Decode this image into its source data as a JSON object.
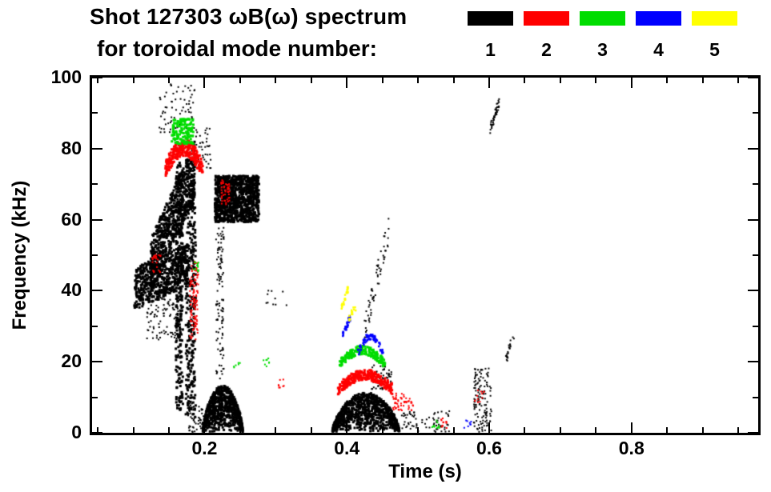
{
  "chart_data": {
    "type": "scatter",
    "title": "Shot 127303 ωB(ω) spectrum",
    "subtitle": "for toroidal mode number:",
    "xlabel": "Time (s)",
    "ylabel": "Frequency (kHz)",
    "xlim": [
      0.042,
      0.978
    ],
    "ylim": [
      0,
      100
    ],
    "xticks": [
      0.2,
      0.4,
      0.6,
      0.8
    ],
    "xtick_labels": [
      "0.2",
      "0.4",
      "0.6",
      "0.8"
    ],
    "yticks": [
      0,
      20,
      40,
      60,
      80,
      100
    ],
    "ytick_labels": [
      "0",
      "20",
      "40",
      "60",
      "80",
      "100"
    ],
    "x_minor_step": 0.05,
    "y_minor_step": 10,
    "legend": [
      {
        "label": "1",
        "color": "#000000"
      },
      {
        "label": "2",
        "color": "#ff0000"
      },
      {
        "label": "3",
        "color": "#00dd00"
      },
      {
        "label": "4",
        "color": "#0000ff"
      },
      {
        "label": "5",
        "color": "#ffff00"
      }
    ],
    "series": [
      {
        "mode": "1",
        "color": "#000000",
        "clusters": [
          [
            "diag",
            0.1,
            0.175,
            40,
            47,
            550,
            3,
            6
          ],
          [
            "diag",
            0.122,
            0.185,
            46,
            74,
            700,
            3,
            8
          ],
          [
            "rect",
            0.158,
            0.168,
            6,
            76,
            300,
            3,
            0
          ],
          [
            "rect",
            0.172,
            0.186,
            4,
            70,
            300,
            3,
            0
          ],
          [
            "rect",
            0.213,
            0.275,
            59,
            72,
            1100,
            3,
            0
          ],
          [
            "rect",
            0.215,
            0.226,
            15,
            58,
            110,
            2,
            0
          ],
          [
            "arch",
            0.196,
            0.252,
            0,
            13,
            750,
            3,
            0
          ],
          [
            "rect",
            0.135,
            0.185,
            84,
            98,
            70,
            2,
            0
          ],
          [
            "rect",
            0.118,
            0.165,
            26,
            38,
            90,
            2,
            0
          ],
          [
            "arch",
            0.378,
            0.472,
            0,
            11,
            850,
            3,
            0
          ],
          [
            "diag",
            0.422,
            0.458,
            28,
            57,
            60,
            2,
            4
          ],
          [
            "rect",
            0.432,
            0.462,
            12,
            19,
            60,
            2,
            0
          ],
          [
            "rect",
            0.475,
            0.545,
            0,
            6,
            70,
            2,
            0
          ],
          [
            "rect",
            0.577,
            0.602,
            0,
            18,
            130,
            2,
            0
          ],
          [
            "diag",
            0.6,
            0.613,
            85,
            93,
            45,
            2,
            1.5
          ],
          [
            "diag",
            0.622,
            0.634,
            20,
            28,
            22,
            2,
            1.5
          ],
          [
            "rect",
            0.285,
            0.315,
            35,
            40,
            10,
            2,
            0
          ],
          [
            "rect",
            0.175,
            0.198,
            0,
            8,
            60,
            2,
            0
          ],
          [
            "rect",
            0.186,
            0.208,
            74,
            86,
            40,
            2,
            0
          ]
        ]
      },
      {
        "mode": "2",
        "color": "#ff0000",
        "clusters": [
          [
            "arc",
            0.143,
            0.196,
            74,
            80,
            260,
            3,
            2.5
          ],
          [
            "rect",
            0.178,
            0.19,
            26,
            48,
            110,
            2,
            0
          ],
          [
            "rect",
            0.125,
            0.138,
            44,
            50,
            22,
            2,
            0
          ],
          [
            "rect",
            0.222,
            0.234,
            64,
            71,
            45,
            2,
            0
          ],
          [
            "arc",
            0.386,
            0.462,
            12,
            16,
            260,
            3,
            1.5
          ],
          [
            "rect",
            0.462,
            0.492,
            6,
            11,
            55,
            2,
            0
          ],
          [
            "rect",
            0.528,
            0.54,
            1,
            4,
            12,
            2,
            0
          ],
          [
            "rect",
            0.3,
            0.312,
            12,
            15,
            8,
            2,
            0
          ],
          [
            "rect",
            0.578,
            0.592,
            8,
            12,
            12,
            2,
            0
          ]
        ]
      },
      {
        "mode": "3",
        "color": "#00dd00",
        "clusters": [
          [
            "rect",
            0.152,
            0.183,
            81,
            88,
            130,
            3,
            0
          ],
          [
            "rect",
            0.183,
            0.191,
            45,
            48,
            12,
            2,
            0
          ],
          [
            "arc",
            0.388,
            0.452,
            19,
            23,
            190,
            3,
            1.2
          ],
          [
            "rect",
            0.28,
            0.29,
            18,
            21,
            8,
            2,
            0
          ],
          [
            "rect",
            0.518,
            0.53,
            1,
            4,
            10,
            2,
            0
          ],
          [
            "rect",
            0.24,
            0.25,
            18,
            21,
            6,
            2,
            0
          ]
        ]
      },
      {
        "mode": "4",
        "color": "#0000ff",
        "clusters": [
          [
            "diag",
            0.393,
            0.403,
            27,
            32,
            30,
            2.5,
            1
          ],
          [
            "arc",
            0.414,
            0.45,
            22,
            27,
            65,
            2.5,
            1
          ],
          [
            "rect",
            0.563,
            0.575,
            1,
            4,
            8,
            2,
            0
          ]
        ]
      },
      {
        "mode": "5",
        "color": "#ffff00",
        "clusters": [
          [
            "diag",
            0.391,
            0.4,
            35,
            40,
            26,
            2.5,
            1
          ],
          [
            "diag",
            0.401,
            0.411,
            32,
            35,
            14,
            2.5,
            1
          ]
        ]
      }
    ]
  }
}
